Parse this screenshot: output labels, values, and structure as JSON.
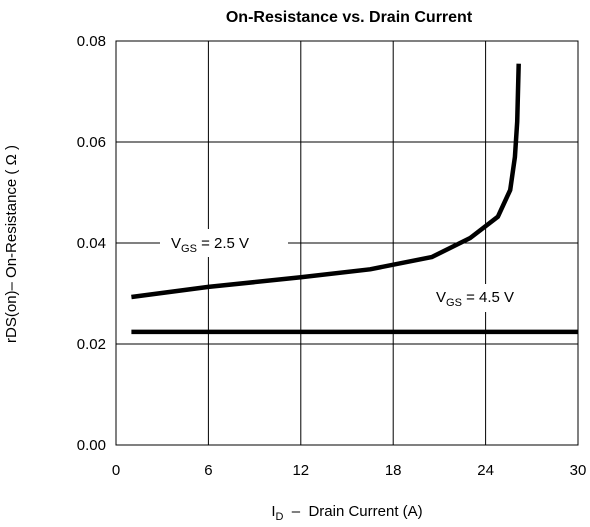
{
  "chart_data": {
    "type": "line",
    "title": "On-Resistance vs. Drain Current",
    "xlabel": {
      "main": "I",
      "sub": "D",
      "rest": "  –  Drain Current (A)"
    },
    "ylabel": "rDS(on)– On-Resistance ( Ω )",
    "xlim": [
      0,
      30
    ],
    "ylim": [
      0,
      0.08
    ],
    "xticks": [
      0,
      6,
      12,
      18,
      24,
      30
    ],
    "xtick_labels": [
      "0",
      "6",
      "12",
      "18",
      "24",
      "30"
    ],
    "yticks": [
      0,
      0.02,
      0.04,
      0.06,
      0.08
    ],
    "ytick_labels": [
      "0.00",
      "0.02",
      "0.04",
      "0.06",
      "0.08"
    ],
    "grid": true,
    "series": [
      {
        "name": {
          "main": "V",
          "sub": "GS",
          "rest": " = 2.5 V"
        },
        "x": [
          1,
          6,
          12,
          16.5,
          20.5,
          23,
          24.8,
          25.6,
          25.9,
          26.05,
          26.15
        ],
        "y": [
          0.0293,
          0.0313,
          0.0332,
          0.0348,
          0.0372,
          0.041,
          0.0452,
          0.0505,
          0.057,
          0.064,
          0.0755
        ]
      },
      {
        "name": {
          "main": "V",
          "sub": "GS",
          "rest": " = 4.5 V"
        },
        "x": [
          1,
          30
        ],
        "y": [
          0.0224,
          0.0224
        ]
      }
    ]
  }
}
